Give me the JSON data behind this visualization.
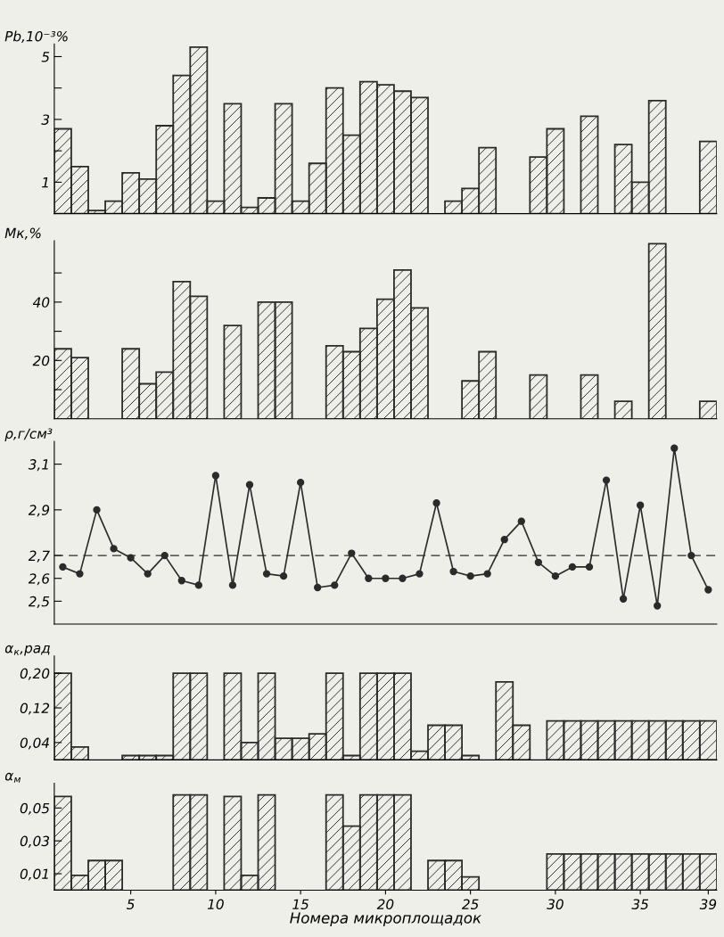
{
  "chart_data": [
    {
      "type": "bar",
      "ylabel": "Pb,10⁻³%",
      "x": [
        1,
        2,
        3,
        4,
        5,
        6,
        7,
        8,
        9,
        10,
        11,
        12,
        13,
        14,
        15,
        16,
        17,
        18,
        19,
        20,
        21,
        22,
        23,
        24,
        25,
        26,
        27,
        28,
        29,
        30,
        31,
        32,
        33,
        34,
        35,
        36,
        37,
        38,
        39
      ],
      "values": [
        2.7,
        1.5,
        0.1,
        0.4,
        1.3,
        1.1,
        2.8,
        4.4,
        5.3,
        0.4,
        3.5,
        0.2,
        0.5,
        3.5,
        0.4,
        1.6,
        4.0,
        2.5,
        4.2,
        4.1,
        3.9,
        3.7,
        null,
        0.4,
        0.8,
        2.1,
        null,
        null,
        1.8,
        2.7,
        null,
        3.1,
        null,
        2.2,
        1.0,
        3.6,
        null,
        null,
        2.3
      ],
      "color": "#2b2b2b",
      "xlim": [
        0.5,
        39.5
      ],
      "xticks": [
        5,
        10,
        15,
        20,
        25,
        30,
        35,
        39
      ],
      "ylim": [
        0,
        5.4
      ],
      "yticks": [
        1,
        {
          "value": 2,
          "label": null
        },
        3,
        {
          "value": 4,
          "label": null
        },
        5
      ],
      "tick_labels": "y"
    },
    {
      "type": "bar",
      "ylabel": "Мк,%",
      "x": [
        1,
        2,
        3,
        4,
        5,
        6,
        7,
        8,
        9,
        10,
        11,
        12,
        13,
        14,
        15,
        16,
        17,
        18,
        19,
        20,
        21,
        22,
        23,
        24,
        25,
        26,
        27,
        28,
        29,
        30,
        31,
        32,
        33,
        34,
        35,
        36,
        37,
        38,
        39
      ],
      "values": [
        24,
        21,
        null,
        null,
        24,
        12,
        16,
        47,
        42,
        null,
        32,
        null,
        40,
        40,
        null,
        null,
        25,
        23,
        31,
        41,
        51,
        38,
        null,
        null,
        13,
        23,
        null,
        null,
        15,
        null,
        null,
        15,
        null,
        6,
        null,
        60,
        null,
        null,
        6
      ],
      "color": "#2b2b2b",
      "xlim": [
        0.5,
        39.5
      ],
      "xticks": [
        5,
        10,
        15,
        20,
        25,
        30,
        35,
        39
      ],
      "ylim": [
        0,
        61
      ],
      "yticks": [
        {
          "value": 10,
          "label": null
        },
        20,
        {
          "value": 30,
          "label": null
        },
        40,
        {
          "value": 50,
          "label": null
        }
      ],
      "tick_labels": "y"
    },
    {
      "type": "line",
      "ylabel": "ρ,г/см³",
      "x": [
        1,
        2,
        3,
        4,
        5,
        6,
        7,
        8,
        9,
        10,
        11,
        12,
        13,
        14,
        15,
        16,
        17,
        18,
        19,
        20,
        21,
        22,
        23,
        24,
        25,
        26,
        27,
        28,
        29,
        30,
        31,
        32,
        33,
        34,
        35,
        36,
        37,
        38,
        39
      ],
      "values": [
        2.65,
        2.62,
        2.9,
        2.73,
        2.69,
        2.62,
        2.7,
        2.59,
        2.57,
        3.05,
        2.57,
        3.01,
        2.62,
        2.61,
        3.02,
        2.56,
        2.57,
        2.71,
        2.6,
        2.6,
        2.6,
        2.62,
        2.93,
        2.63,
        2.61,
        2.62,
        2.77,
        2.85,
        2.67,
        2.61,
        2.65,
        2.65,
        3.03,
        2.51,
        2.92,
        2.48,
        3.17,
        2.7,
        2.55
      ],
      "color": "#2b2b2b",
      "marker": "circle",
      "line_style": "solid",
      "xlim": [
        0.5,
        39.5
      ],
      "xticks": [
        5,
        10,
        15,
        20,
        25,
        30,
        35,
        39
      ],
      "ylim": [
        2.4,
        3.2
      ],
      "yticks": [
        {
          "value": 2.5,
          "label": "2,5"
        },
        {
          "value": 2.6,
          "label": "2,6"
        },
        {
          "value": 2.7,
          "label": "2,7"
        },
        {
          "value": 2.9,
          "label": "2,9"
        },
        {
          "value": 3.1,
          "label": "3,1"
        }
      ],
      "ref_lines": [
        {
          "axis": "y",
          "value": 2.7,
          "label": null,
          "color": "#2b2b2b",
          "line_style": "dashed"
        }
      ],
      "tick_labels": "y"
    },
    {
      "type": "bar",
      "ylabel": "α$_{к}$,рад",
      "x": [
        1,
        2,
        3,
        4,
        5,
        6,
        7,
        8,
        9,
        10,
        11,
        12,
        13,
        14,
        15,
        16,
        17,
        18,
        19,
        20,
        21,
        22,
        23,
        24,
        25,
        26,
        27,
        28,
        29,
        30,
        31,
        32,
        33,
        34,
        35,
        36,
        37,
        38,
        39
      ],
      "values": [
        0.2,
        0.03,
        null,
        null,
        0.01,
        0.01,
        0.01,
        0.2,
        0.2,
        null,
        0.2,
        0.04,
        0.2,
        0.05,
        0.05,
        0.06,
        0.2,
        0.01,
        0.2,
        0.2,
        0.2,
        0.02,
        0.08,
        0.08,
        0.01,
        null,
        0.18,
        0.08,
        null,
        0.09,
        0.09,
        0.09,
        0.09,
        0.09,
        0.09,
        0.09,
        0.09,
        0.09,
        0.09
      ],
      "color": "#2b2b2b",
      "xlim": [
        0.5,
        39.5
      ],
      "xticks": [
        5,
        10,
        15,
        20,
        25,
        30,
        35,
        39
      ],
      "ylim": [
        0,
        0.24
      ],
      "yticks": [
        {
          "value": 0.04,
          "label": "0,04"
        },
        {
          "value": 0.12,
          "label": "0,12"
        },
        {
          "value": 0.2,
          "label": "0,20"
        }
      ],
      "tick_labels": "y"
    },
    {
      "type": "bar",
      "ylabel": "α$_{м}$",
      "xlabel": "Номера микроплощадок",
      "x": [
        1,
        2,
        3,
        4,
        5,
        6,
        7,
        8,
        9,
        10,
        11,
        12,
        13,
        14,
        15,
        16,
        17,
        18,
        19,
        20,
        21,
        22,
        23,
        24,
        25,
        26,
        27,
        28,
        29,
        30,
        31,
        32,
        33,
        34,
        35,
        36,
        37,
        38,
        39
      ],
      "values": [
        0.057,
        0.009,
        0.018,
        0.018,
        null,
        null,
        null,
        0.058,
        0.058,
        null,
        0.057,
        0.009,
        0.058,
        null,
        null,
        null,
        0.058,
        0.039,
        0.058,
        0.058,
        0.058,
        null,
        0.018,
        0.018,
        0.008,
        null,
        null,
        null,
        null,
        0.022,
        0.022,
        0.022,
        0.022,
        0.022,
        0.022,
        0.022,
        0.022,
        0.022,
        0.022
      ],
      "color": "#2b2b2b",
      "xlim": [
        0.5,
        39.5
      ],
      "xticks": [
        5,
        10,
        15,
        20,
        25,
        30,
        35,
        39
      ],
      "ylim": [
        0,
        0.065
      ],
      "yticks": [
        {
          "value": 0.01,
          "label": "0,01"
        },
        {
          "value": 0.03,
          "label": "0,03"
        },
        {
          "value": 0.05,
          "label": "0,05"
        }
      ]
    }
  ]
}
